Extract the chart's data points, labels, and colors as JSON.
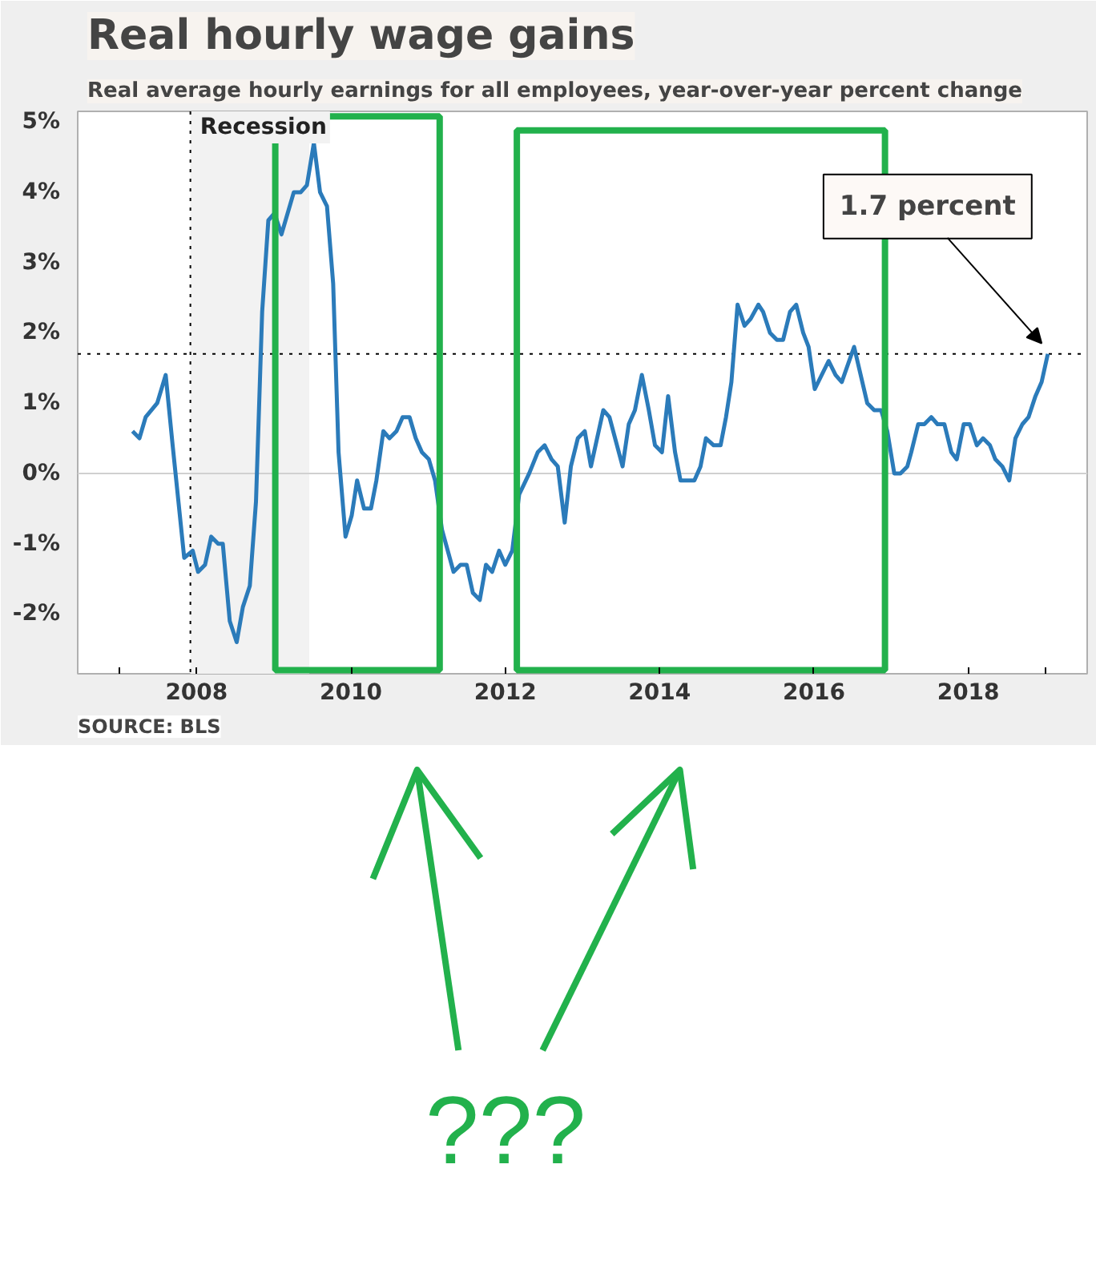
{
  "chart_data": {
    "type": "line",
    "title": "Real hourly wage gains",
    "subtitle": "Real average hourly earnings for all employees, year-over-year percent change",
    "x": [
      2007.17,
      2007.26,
      2007.34,
      2007.49,
      2007.6,
      2007.69,
      2007.84,
      2007.95,
      2008.02,
      2008.11,
      2008.19,
      2008.28,
      2008.34,
      2008.43,
      2008.52,
      2008.6,
      2008.69,
      2008.77,
      2008.85,
      2008.93,
      2009.01,
      2009.1,
      2009.26,
      2009.35,
      2009.43,
      2009.52,
      2009.6,
      2009.69,
      2009.77,
      2009.84,
      2009.93,
      2010.01,
      2010.08,
      2010.17,
      2010.26,
      2010.33,
      2010.42,
      2010.5,
      2010.59,
      2010.67,
      2010.76,
      2010.84,
      2010.92,
      2011.01,
      2011.09,
      2011.18,
      2011.33,
      2011.42,
      2011.5,
      2011.58,
      2011.67,
      2011.75,
      2011.83,
      2011.92,
      2012.0,
      2012.09,
      2012.18,
      2012.31,
      2012.42,
      2012.51,
      2012.6,
      2012.68,
      2012.77,
      2012.85,
      2012.94,
      2013.03,
      2013.11,
      2013.27,
      2013.35,
      2013.52,
      2013.6,
      2013.68,
      2013.77,
      2013.86,
      2013.94,
      2014.03,
      2014.11,
      2014.2,
      2014.27,
      2014.45,
      2014.53,
      2014.6,
      2014.7,
      2014.79,
      2014.86,
      2014.93,
      2015.01,
      2015.1,
      2015.18,
      2015.28,
      2015.34,
      2015.43,
      2015.52,
      2015.6,
      2015.69,
      2015.77,
      2015.86,
      2015.93,
      2016.01,
      2016.19,
      2016.28,
      2016.36,
      2016.52,
      2016.69,
      2016.78,
      2016.87,
      2016.95,
      2017.04,
      2017.12,
      2017.21,
      2017.26,
      2017.35,
      2017.43,
      2017.52,
      2017.6,
      2017.69,
      2017.78,
      2017.85,
      2017.94,
      2018.02,
      2018.11,
      2018.19,
      2018.28,
      2018.35,
      2018.44,
      2018.53,
      2018.61,
      2018.7,
      2018.78,
      2018.87,
      2018.95,
      2019.03
    ],
    "series": [
      {
        "color": "#2b7bba",
        "values": [
          0.6,
          0.5,
          0.8,
          1.0,
          1.4,
          0.4,
          -1.2,
          -1.1,
          -1.4,
          -1.3,
          -0.9,
          -1.0,
          -1.0,
          -2.1,
          -2.4,
          -1.9,
          -1.6,
          -0.4,
          2.3,
          3.6,
          3.7,
          3.4,
          4.0,
          4.0,
          4.1,
          4.7,
          4.0,
          3.8,
          2.7,
          0.3,
          -0.9,
          -0.6,
          -0.1,
          -0.5,
          -0.5,
          -0.1,
          0.6,
          0.5,
          0.6,
          0.8,
          0.8,
          0.5,
          0.3,
          0.2,
          -0.1,
          -0.8,
          -1.4,
          -1.3,
          -1.3,
          -1.7,
          -1.8,
          -1.3,
          -1.4,
          -1.1,
          -1.3,
          -1.1,
          -0.3,
          0.0,
          0.3,
          0.4,
          0.2,
          0.1,
          -0.7,
          0.1,
          0.5,
          0.6,
          0.1,
          0.9,
          0.8,
          0.1,
          0.7,
          0.9,
          1.4,
          0.9,
          0.4,
          0.3,
          1.1,
          0.3,
          -0.1,
          -0.1,
          0.1,
          0.5,
          0.4,
          0.4,
          0.8,
          1.3,
          2.4,
          2.1,
          2.2,
          2.4,
          2.3,
          2.0,
          1.9,
          1.9,
          2.3,
          2.4,
          2.0,
          1.8,
          1.2,
          1.6,
          1.4,
          1.3,
          1.8,
          1.0,
          0.9,
          0.9,
          0.6,
          0.0,
          0.0,
          0.1,
          0.3,
          0.7,
          0.7,
          0.8,
          0.7,
          0.7,
          0.3,
          0.2,
          0.7,
          0.7,
          0.4,
          0.5,
          0.4,
          0.2,
          0.1,
          -0.1,
          0.5,
          0.7,
          0.8,
          1.1,
          1.3,
          1.7
        ]
      }
    ],
    "xlim": [
      2006.46,
      2019.54
    ],
    "xticks": [
      {
        "value": 2007,
        "label": null
      },
      2008,
      2010,
      2012,
      2014,
      2016,
      2018,
      {
        "value": 2019,
        "label": null
      }
    ],
    "ylim": [
      -2.85,
      5.15
    ],
    "yticks": [
      {
        "value": -2,
        "label": "-2%"
      },
      {
        "value": -1,
        "label": "-1%"
      },
      {
        "value": 0,
        "label": "0%"
      },
      {
        "value": 1,
        "label": "1%"
      },
      {
        "value": 2,
        "label": "2%"
      },
      {
        "value": 3,
        "label": "3%"
      },
      {
        "value": 4,
        "label": "4%"
      },
      {
        "value": 5,
        "label": "5%"
      }
    ],
    "grid": false,
    "line_style": "solid",
    "bands": [
      {
        "axis": "x",
        "from": 2007.92,
        "to": 2009.46,
        "label": "Recession",
        "color": "#f2f2f2"
      }
    ],
    "ref_lines": [
      {
        "axis": "y",
        "value": 0,
        "color": "#d0d0d0",
        "line_style": "solid"
      },
      {
        "axis": "y",
        "value": 1.7,
        "color": "#000000",
        "line_style": "dotted"
      },
      {
        "axis": "x",
        "value": 2007.92,
        "color": "#000000",
        "line_style": "dotted"
      }
    ],
    "annotations": [
      {
        "text": "1.7 percent",
        "x": 2019.03,
        "y": 1.7
      },
      "SOURCE: BLS",
      "???"
    ]
  }
}
